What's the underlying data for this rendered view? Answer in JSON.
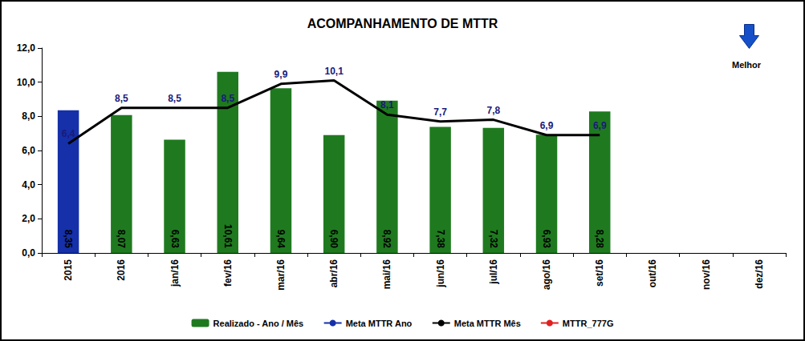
{
  "chart_data": {
    "type": "bar",
    "title": "ACOMPANHAMENTO DE MTTR",
    "annotation": "Melhor",
    "categories": [
      "2015",
      "2016",
      "jan/16",
      "fev/16",
      "mar/16",
      "abr/16",
      "mai/16",
      "jun/16",
      "jul/16",
      "ago/16",
      "set/16",
      "out/16",
      "nov/16",
      "dez/16"
    ],
    "ylim": [
      0,
      12
    ],
    "yticks": [
      {
        "value": 0,
        "label": "0,0"
      },
      {
        "value": 2,
        "label": "2,0"
      },
      {
        "value": 4,
        "label": "4,0"
      },
      {
        "value": 6,
        "label": "6,0"
      },
      {
        "value": 8,
        "label": "8,0"
      },
      {
        "value": 10,
        "label": "10,0"
      },
      {
        "value": 12,
        "label": "12,0"
      }
    ],
    "grid": false,
    "legend": "bottom",
    "data_labels": true,
    "series": [
      {
        "name": "Realizado - Ano / Mês",
        "type": "bar",
        "color": "#1f7a1f",
        "colors": [
          "#1530a8",
          "#1f7a1f",
          "#1f7a1f",
          "#1f7a1f",
          "#1f7a1f",
          "#1f7a1f",
          "#1f7a1f",
          "#1f7a1f",
          "#1f7a1f",
          "#1f7a1f",
          "#1f7a1f",
          "#1f7a1f",
          "#1f7a1f",
          "#1f7a1f"
        ],
        "values": [
          8.35,
          8.07,
          6.63,
          10.61,
          9.64,
          6.9,
          8.92,
          7.38,
          7.32,
          6.93,
          8.28,
          null,
          null,
          null
        ],
        "value_labels": [
          "8,35",
          "8,07",
          "6,63",
          "10,61",
          "9,64",
          "6,90",
          "8,92",
          "7,38",
          "7,32",
          "6,93",
          "8,28",
          null,
          null,
          null
        ]
      },
      {
        "name": "Meta MTTR Ano",
        "type": "line",
        "color": "#1530a8",
        "values": [
          null,
          null,
          null,
          null,
          null,
          null,
          null,
          null,
          null,
          null,
          null,
          null,
          null,
          null
        ]
      },
      {
        "name": "Meta MTTR Mês",
        "type": "line",
        "color": "#000000",
        "values": [
          6.4,
          8.5,
          8.5,
          8.5,
          9.9,
          10.1,
          8.1,
          7.7,
          7.8,
          6.9,
          6.9,
          null,
          null,
          null
        ],
        "value_labels": [
          "6,4",
          "8,5",
          "8,5",
          "8,5",
          "9,9",
          "10,1",
          "8,1",
          "7,7",
          "7,8",
          "6,9",
          "6,9",
          null,
          null,
          null
        ]
      },
      {
        "name": "MTTR_777G",
        "type": "line",
        "color": "#e02020",
        "marker": "circle",
        "values": [
          null,
          null,
          null,
          null,
          null,
          null,
          null,
          null,
          null,
          null,
          null,
          null,
          null,
          null
        ]
      }
    ]
  }
}
